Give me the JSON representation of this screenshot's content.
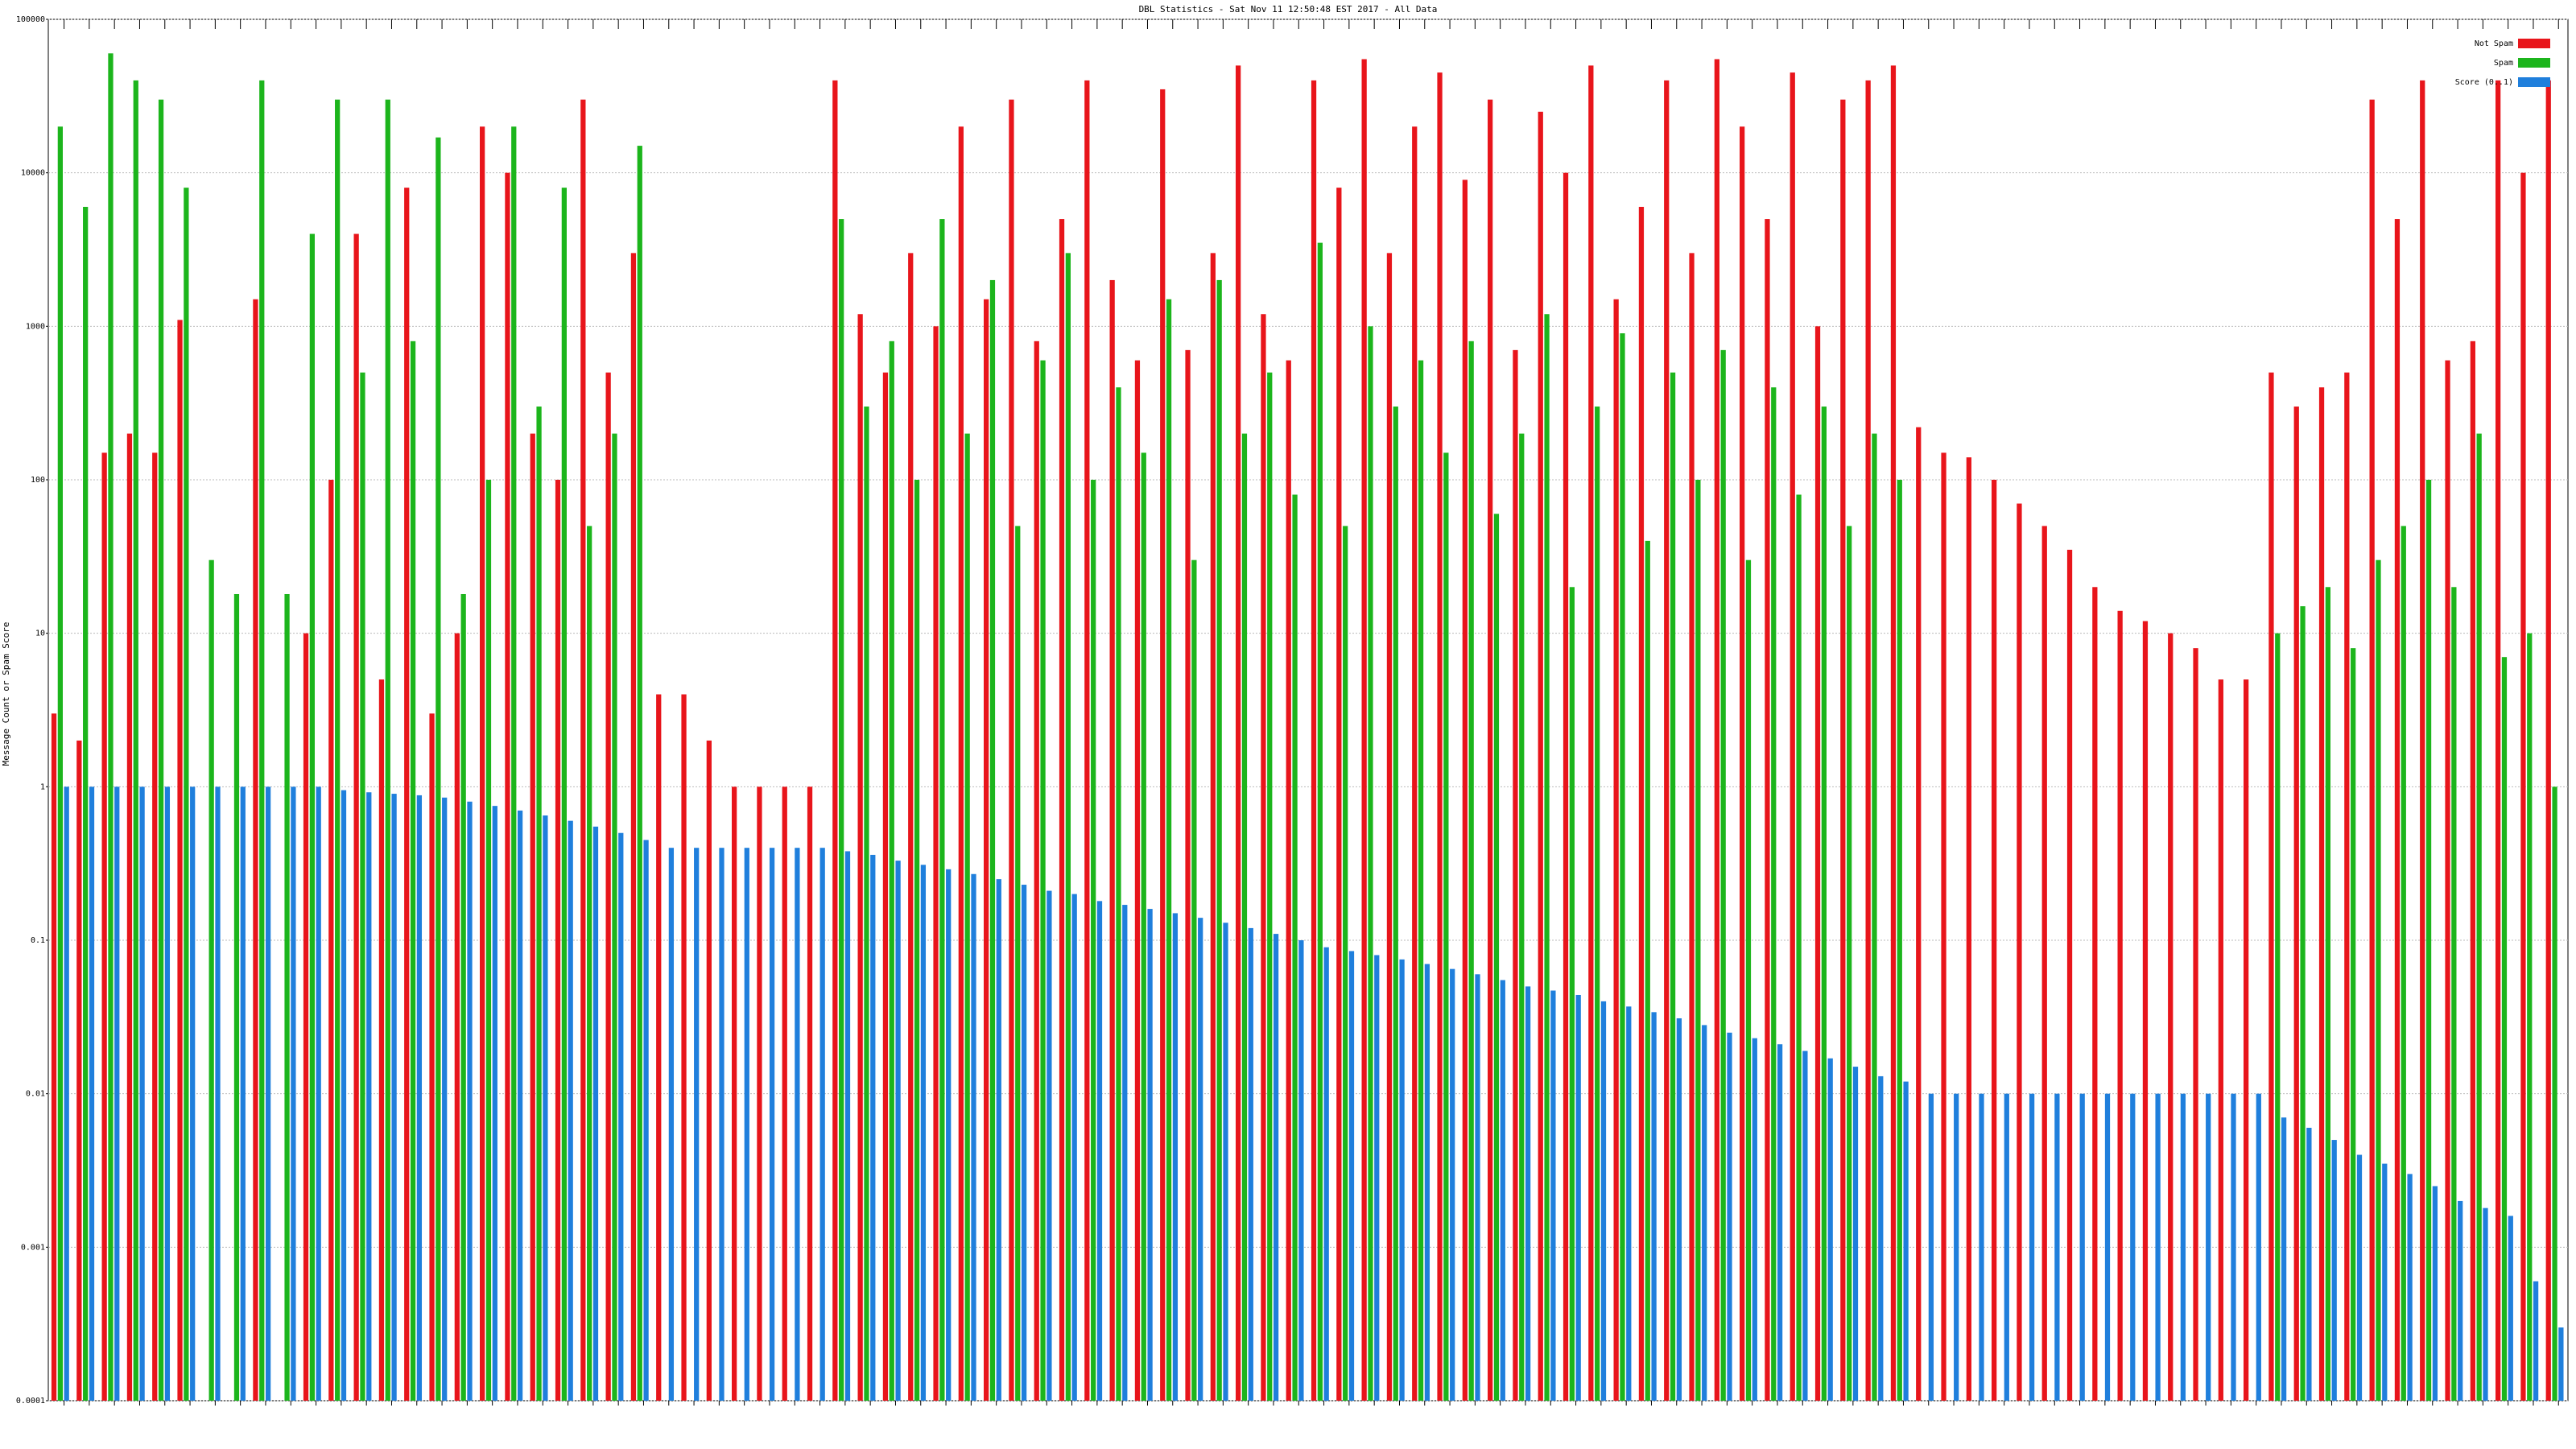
{
  "chart_data": {
    "type": "bar",
    "title": "DBL Statistics - Sat Nov 11 12:50:48 EST 2017 - All Data",
    "y_label": "Message Count or Spam Score",
    "log_scale": true,
    "grid": true,
    "legend": "top-right",
    "categories": [
      null,
      null,
      null,
      null,
      null,
      null,
      null,
      null,
      null,
      null,
      null,
      null,
      null,
      null,
      null,
      null,
      null,
      null,
      null,
      null,
      null,
      null,
      null,
      null,
      null,
      null,
      null,
      null,
      null,
      null,
      null,
      null,
      null,
      null,
      null,
      null,
      null,
      null,
      null,
      null,
      null,
      null,
      null,
      null,
      null,
      null,
      null,
      null,
      null,
      null,
      null,
      null,
      null,
      null,
      null,
      null,
      null,
      null,
      null,
      null,
      null,
      null,
      null,
      null,
      null,
      null,
      null,
      null,
      null,
      null,
      null,
      null,
      null,
      null,
      null,
      null,
      null,
      null,
      null,
      null,
      null,
      null,
      null,
      null,
      null,
      null,
      null,
      null,
      null,
      null,
      null,
      null,
      null,
      null,
      null,
      null,
      null,
      null,
      null,
      null
    ],
    "series": [
      {
        "name": "Not Spam",
        "color": "#e8151b",
        "values": [
          3,
          2,
          150,
          200,
          150,
          1100,
          null,
          null,
          1500,
          null,
          10,
          100,
          4000,
          5,
          8000,
          3,
          10,
          20000,
          10000,
          200,
          100,
          30000,
          500,
          3000,
          4,
          4,
          2,
          1,
          1,
          1,
          1,
          40000,
          1200,
          500,
          3000,
          1000,
          20000,
          1500,
          30000,
          800,
          5000,
          40000,
          2000,
          600,
          35000,
          700,
          3000,
          50000,
          1200,
          600,
          40000,
          8000,
          55000,
          3000,
          20000,
          45000,
          9000,
          30000,
          700,
          25000,
          10000,
          50000,
          1500,
          6000,
          40000,
          3000,
          55000,
          20000,
          5000,
          45000,
          1000,
          30000,
          40000,
          50000,
          220,
          150,
          140,
          100,
          70,
          50,
          35,
          20,
          14,
          12,
          10,
          8,
          5,
          5,
          500,
          300,
          400,
          500,
          30000,
          5000,
          40000,
          600,
          800,
          40000,
          10000,
          40000
        ]
      },
      {
        "name": "Spam",
        "color": "#1cb51c",
        "values": [
          20000,
          6000,
          60000,
          40000,
          30000,
          8000,
          30,
          18,
          40000,
          18,
          4000,
          30000,
          500,
          30000,
          800,
          17000,
          18,
          100,
          20000,
          300,
          8000,
          50,
          200,
          15000,
          null,
          null,
          null,
          null,
          null,
          null,
          null,
          5000,
          300,
          800,
          100,
          5000,
          200,
          2000,
          50,
          600,
          3000,
          100,
          400,
          150,
          1500,
          30,
          2000,
          200,
          500,
          80,
          3500,
          50,
          1000,
          300,
          600,
          150,
          800,
          60,
          200,
          1200,
          20,
          300,
          900,
          40,
          500,
          100,
          700,
          30,
          400,
          80,
          300,
          50,
          200,
          100,
          null,
          null,
          null,
          null,
          null,
          null,
          null,
          null,
          null,
          null,
          null,
          null,
          null,
          null,
          10,
          15,
          20,
          8,
          30,
          50,
          100,
          20,
          200,
          7,
          10,
          1
        ]
      },
      {
        "name": "Score (0..1)",
        "color": "#1f7fdc",
        "values": [
          1,
          1,
          1,
          1,
          1,
          1,
          1,
          1,
          1,
          1,
          1,
          0.95,
          0.92,
          0.9,
          0.88,
          0.85,
          0.8,
          0.75,
          0.7,
          0.65,
          0.6,
          0.55,
          0.5,
          0.45,
          0.4,
          0.4,
          0.4,
          0.4,
          0.4,
          0.4,
          0.4,
          0.38,
          0.36,
          0.33,
          0.31,
          0.29,
          0.27,
          0.25,
          0.23,
          0.21,
          0.2,
          0.18,
          0.17,
          0.16,
          0.15,
          0.14,
          0.13,
          0.12,
          0.11,
          0.1,
          0.09,
          0.085,
          0.08,
          0.075,
          0.07,
          0.065,
          0.06,
          0.055,
          0.05,
          0.047,
          0.044,
          0.04,
          0.037,
          0.034,
          0.031,
          0.028,
          0.025,
          0.023,
          0.021,
          0.019,
          0.017,
          0.015,
          0.013,
          0.012,
          0.01,
          0.01,
          0.01,
          0.01,
          0.01,
          0.01,
          0.01,
          0.01,
          0.01,
          0.01,
          0.01,
          0.01,
          0.01,
          0.01,
          0.007,
          0.006,
          0.005,
          0.004,
          0.0035,
          0.003,
          0.0025,
          0.002,
          0.0018,
          0.0016,
          0.0006,
          0.0003
        ]
      }
    ],
    "ylim": [
      0.0001,
      100000
    ],
    "yticks": [
      100000,
      10000,
      1000,
      100,
      10,
      1,
      0.1,
      0.01,
      0.001,
      0.0001
    ]
  }
}
